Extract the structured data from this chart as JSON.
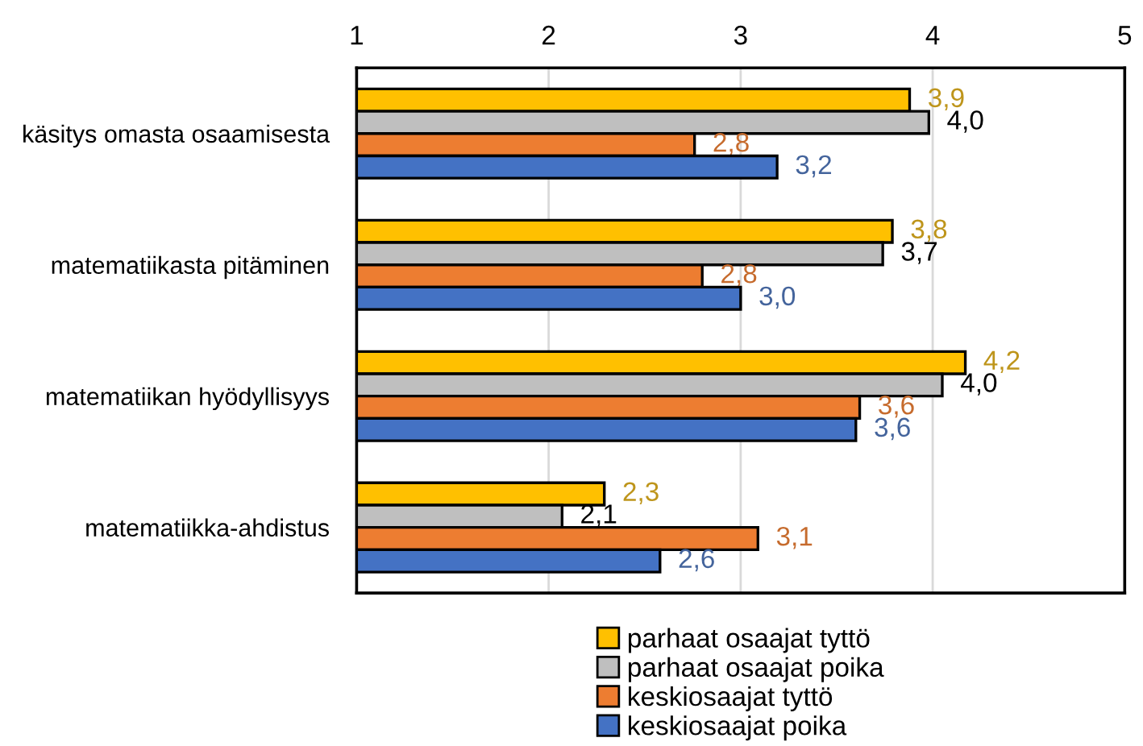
{
  "chart_data": {
    "type": "bar",
    "orientation": "horizontal",
    "categories": [
      "käsitys omasta osaamisesta",
      "matematiikasta pitäminen",
      "matematiikan hyödyllisyys",
      "matematiikka-ahdistus"
    ],
    "series": [
      {
        "name": "parhaat osaajat tyttö",
        "color": "#ffc000",
        "values": [
          3.88,
          3.79,
          4.17,
          2.29
        ],
        "value_labels": [
          "3,9",
          "3,8",
          "4,2",
          "2,3"
        ]
      },
      {
        "name": "parhaat osaajat poika",
        "color": "#bfbfbf",
        "values": [
          3.98,
          3.74,
          4.05,
          2.07
        ],
        "value_labels": [
          "4,0",
          "3,7",
          "4,0",
          "2,1"
        ]
      },
      {
        "name": "keskiosaajat tyttö",
        "color": "#ed7d31",
        "values": [
          2.76,
          2.8,
          3.62,
          3.09
        ],
        "value_labels": [
          "2,8",
          "2,8",
          "3,6",
          "3,1"
        ]
      },
      {
        "name": "keskiosaajat poika",
        "color": "#4472c4",
        "values": [
          3.19,
          3.0,
          3.6,
          2.58
        ],
        "value_labels": [
          "3,2",
          "3,0",
          "3,6",
          "2,6"
        ]
      }
    ],
    "xlim": [
      1,
      5
    ],
    "xticks": [
      1,
      2,
      3,
      4,
      5
    ],
    "grid": "x",
    "legend": "bottom"
  }
}
